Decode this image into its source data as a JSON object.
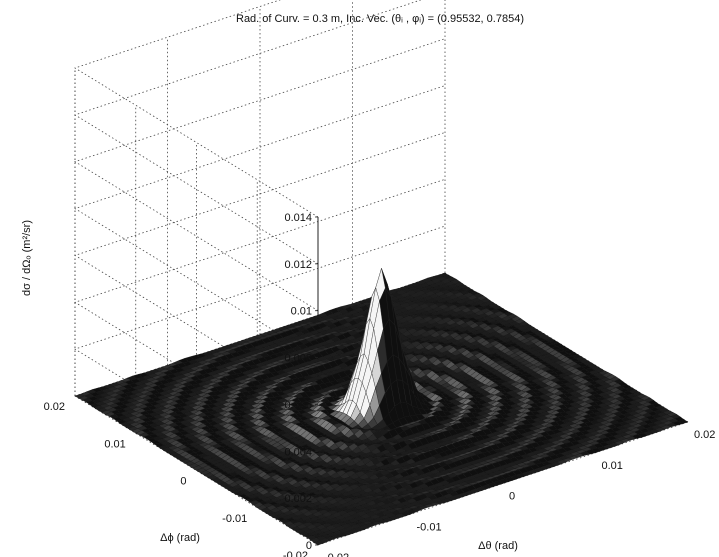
{
  "chart_data": {
    "type": "surface",
    "title": "Rad. of Curv. = 0.3 m, Inc. Vec. (θᵢ , φᵢ) = (0.95532, 0.7854)",
    "xlabel": "Δθ (rad)",
    "ylabel": "Δϕ (rad)",
    "zlabel": "dσ / dΩₒ (m²/sr)",
    "x_ticks": [
      "-0.02",
      "-0.01",
      "0",
      "0.01",
      "0.02"
    ],
    "y_ticks": [
      "-0.02",
      "-0.01",
      "0",
      "0.01",
      "0.02"
    ],
    "z_ticks": [
      "0",
      "0.002",
      "0.004",
      "0.006",
      "0.008",
      "0.01",
      "0.012",
      "0.014"
    ],
    "xlim": [
      -0.02,
      0.02
    ],
    "ylim": [
      -0.02,
      0.02
    ],
    "zlim": [
      0,
      0.014
    ],
    "grid": true,
    "peak": {
      "x": 0,
      "y": 0,
      "z": 0.0057
    },
    "side_lobe_level": 0.0003,
    "colors": {
      "surface_light": "#f2f2f2",
      "surface_dark": "#1a1a1a",
      "grid": "#444444"
    }
  }
}
